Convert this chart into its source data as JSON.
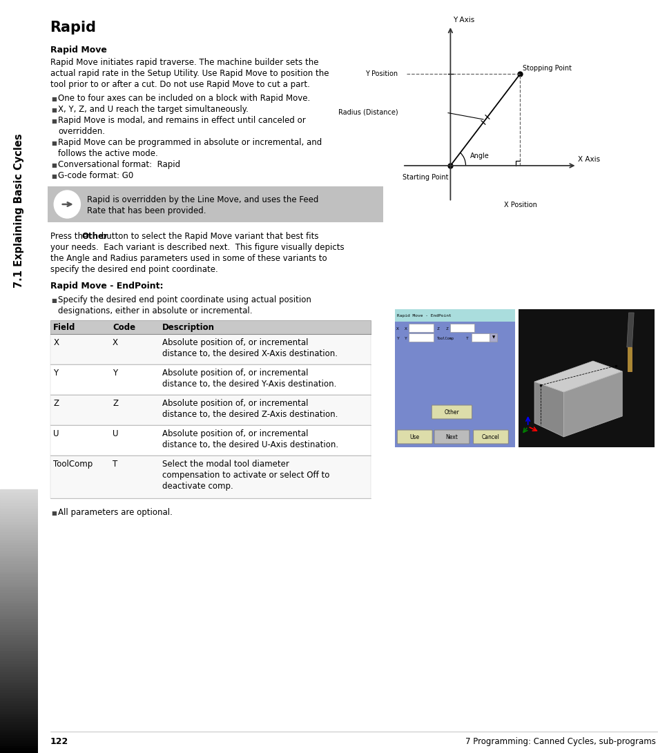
{
  "page_bg": "#ffffff",
  "sidebar_text": "7.1 Explaining Basic Cycles",
  "title": "Rapid",
  "section1_title": "Rapid Move",
  "section1_body_lines": [
    "Rapid Move initiates rapid traverse. The machine builder sets the",
    "actual rapid rate in the Setup Utility. Use Rapid Move to position the",
    "tool prior to or after a cut. Do not use Rapid Move to cut a part."
  ],
  "bullets1": [
    [
      "One to four axes can be included on a block with Rapid Move."
    ],
    [
      "X, Y, Z, and U reach the target simultaneously."
    ],
    [
      "Rapid Move is modal, and remains in effect until canceled or",
      "overridden."
    ],
    [
      "Rapid Move can be programmed in absolute or incremental, and",
      "follows the active mode."
    ],
    [
      "Conversational format:  Rapid"
    ],
    [
      "G-code format: G0"
    ]
  ],
  "note_line1": "Rapid is overridden by the Line Move, and uses the Feed",
  "note_line2": "Rate that has been provided.",
  "note_bg": "#c0c0c0",
  "press_line1_pre": "Press the ",
  "press_line1_bold": "Other",
  "press_line1_post": " button to select the Rapid Move variant that best fits",
  "press_lines": [
    "your needs.  Each variant is described next.  This figure visually depicts",
    "the Angle and Radius parameters used in some of these variants to",
    "specify the desired end point coordinate."
  ],
  "section2_title": "Rapid Move - EndPoint:",
  "bullet2_lines": [
    "Specify the desired end point coordinate using actual position",
    "designations, either in absolute or incremental."
  ],
  "table_header": [
    "Field",
    "Code",
    "Description"
  ],
  "table_rows": [
    [
      "X",
      "X",
      [
        "Absolute position of, or incremental",
        "distance to, the desired X-Axis destination."
      ]
    ],
    [
      "Y",
      "Y",
      [
        "Absolute position of, or incremental",
        "distance to, the desired Y-Axis destination."
      ]
    ],
    [
      "Z",
      "Z",
      [
        "Absolute position of, or incremental",
        "distance to, the desired Z-Axis destination."
      ]
    ],
    [
      "U",
      "U",
      [
        "Absolute position of, or incremental",
        "distance to, the desired U-Axis destination."
      ]
    ],
    [
      "ToolComp",
      "T",
      [
        "Select the modal tool diameter",
        "compensation to activate or select Off to",
        "deactivate comp."
      ]
    ]
  ],
  "footer_bullet": "All parameters are optional.",
  "page_num": "122",
  "footer_right": "7 Programming: Canned Cycles, sub-programs",
  "table_header_bg": "#c8c8c8"
}
